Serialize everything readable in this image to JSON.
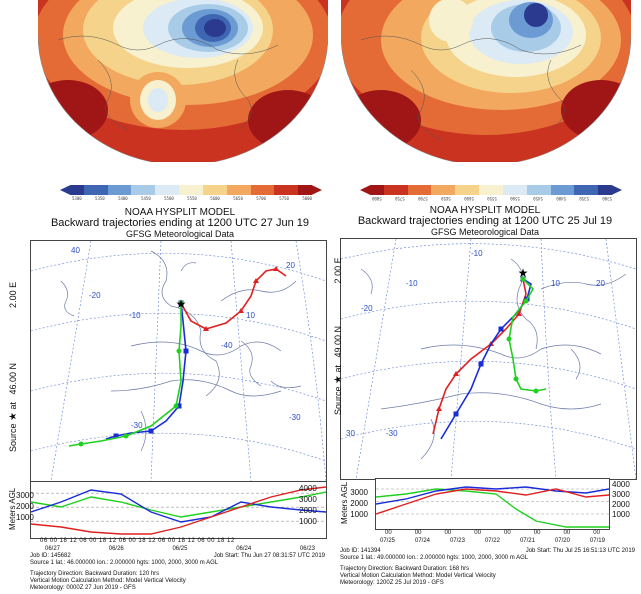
{
  "top_left_map": {
    "colorbar_ticks": [
      "5300",
      "5350",
      "5400",
      "5450",
      "5500",
      "5550",
      "5600",
      "5650",
      "5700",
      "5750",
      "5800"
    ],
    "colorbar_colors": [
      "#2b3a8f",
      "#3f66b3",
      "#6c9ad2",
      "#a8cce8",
      "#dbeaf4",
      "#f7f1d0",
      "#f6d38a",
      "#f2a85e",
      "#e56b36",
      "#c93320",
      "#a01515"
    ]
  },
  "top_right_map": {
    "colorbar_ticks": [
      "5300",
      "5350",
      "5400",
      "5450",
      "5500",
      "5550",
      "5600",
      "5650",
      "5700",
      "5750",
      "5800"
    ],
    "colorbar_colors": [
      "#a01515",
      "#c93320",
      "#e56b36",
      "#f2a85e",
      "#f6d38a",
      "#f7f1d0",
      "#dbeaf4",
      "#a8cce8",
      "#6c9ad2",
      "#3f66b3",
      "#2b3a8f"
    ]
  },
  "left": {
    "model": "NOAA HYSPLIT MODEL",
    "title": "Backward trajectories ending at 1200 UTC 27 Jun 19",
    "subtitle": "GFSG Meteorological Data",
    "source_label": "Source ★ at 46.00 N 2.00 E",
    "source_lat": "46.00 N",
    "source_lon": "2.00 E",
    "grid_labels": [
      "-20",
      "-10",
      "10",
      "40",
      "-40",
      "-30",
      "20",
      "-30"
    ],
    "agl_title": "Meters AGL",
    "agl_left_ticks": [
      "3000",
      "2000",
      "1000"
    ],
    "agl_right_ticks": [
      "4000",
      "3000",
      "2000",
      "1000"
    ],
    "time_ticks": [
      "06 00 18 12 06 00 18 12 06 00 18 12 06 00 18 12 06 00 18 12"
    ],
    "date_ticks": [
      "06/27",
      "06/26",
      "06/25",
      "06/24",
      "06/23"
    ],
    "footer": {
      "job_id": "Job ID: 145682",
      "job_start": "Job Start: Thu Jun 27 08:31:57 UTC 2019",
      "source_line": "Source 1 lat.: 46.000000  lon.: 2.000000  hgts: 1000, 2000, 3000 m AGL",
      "direction": "Trajectory Direction: Backward     Duration: 120 hrs",
      "vertical": "Vertical Motion Calculation Method:     Model Vertical Velocity",
      "meteo": "Meteorology: 0000Z 27 Jun 2019 - GFS"
    }
  },
  "right": {
    "model": "NOAA HYSPLIT MODEL",
    "title": "Backward trajectories ending at 1200 UTC 25 Jul 19",
    "subtitle": "GFSG Meteorological Data",
    "source_label": "Source ★ at 49.00 N 2.00 E",
    "source_lat": "49.00 N",
    "source_lon": "2.00 E",
    "grid_labels": [
      "-20",
      "-10",
      "10",
      "-30",
      "30",
      "20",
      "-10"
    ],
    "agl_title": "Meters AGL",
    "agl_left_ticks": [
      "3000",
      "2000",
      "1000"
    ],
    "agl_right_ticks": [
      "4000",
      "3000",
      "2000",
      "1000"
    ],
    "time_ticks": [
      "00",
      "00",
      "00",
      "00",
      "00",
      "00",
      "00",
      "00"
    ],
    "date_ticks": [
      "07/25",
      "07/24",
      "07/23",
      "07/22",
      "07/21",
      "07/20",
      "07/19"
    ],
    "footer": {
      "job_id": "Job ID: 141394",
      "job_start": "Job Start: Thu Jul 25 16:51:13 UTC 2019",
      "source_line": "Source 1 lat.: 49.000000  lon.: 2.000000  hgts: 1000, 2000, 3000 m AGL",
      "direction": "Trajectory Direction: Backward     Duration: 168 hrs",
      "vertical": "Vertical Motion Calculation Method:     Model Vertical Velocity",
      "meteo": "Meteorology: 1200Z 25 Jul 2019 - GFS"
    }
  },
  "series_colors": {
    "h1000": "#e02020",
    "h2000": "#1a2cd8",
    "h3000": "#20d020"
  }
}
